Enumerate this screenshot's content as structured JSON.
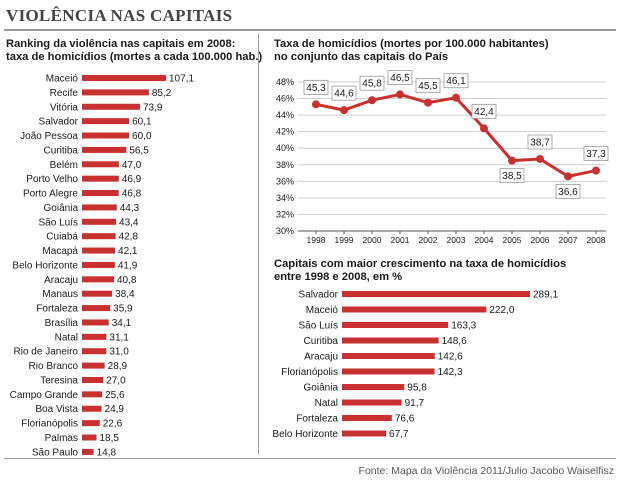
{
  "page": {
    "title": "VIOLÊNCIA NAS CAPITAIS",
    "source": "Fonte: Mapa da Violência 2011/Julio Jacobo Waiselfisz"
  },
  "colors": {
    "bar": "#c8312f",
    "line": "#c8312f",
    "marker": "#c8312f",
    "grid": "#cfcfcf",
    "label_box": "#ffffff"
  },
  "chart_data": [
    {
      "type": "bar",
      "orientation": "horizontal",
      "title_lines": [
        "Ranking da violência nas capitais em 2008:",
        "taxa de homicídios (mortes a cada 100.000 hab.)"
      ],
      "categories": [
        "Maceió",
        "Recife",
        "Vitória",
        "Salvador",
        "João Pessoa",
        "Curitiba",
        "Belém",
        "Porto Velho",
        "Porto Alegre",
        "Goiânia",
        "São Luís",
        "Cuiabá",
        "Macapá",
        "Belo Horizonte",
        "Aracaju",
        "Manaus",
        "Fortaleza",
        "Brasília",
        "Natal",
        "Rio de Janeiro",
        "Rio Branco",
        "Teresina",
        "Campo Grande",
        "Boa Vista",
        "Florianópolis",
        "Palmas",
        "São Paulo"
      ],
      "values": [
        107.1,
        85.2,
        73.9,
        60.1,
        60.0,
        56.5,
        47.0,
        46.9,
        46.8,
        44.3,
        43.4,
        42.8,
        42.1,
        41.9,
        40.8,
        38.4,
        35.9,
        34.1,
        31.1,
        31.0,
        28.9,
        27.0,
        25.6,
        24.9,
        22.6,
        18.5,
        14.8
      ],
      "value_labels": [
        "107,1",
        "85,2",
        "73,9",
        "60,1",
        "60,0",
        "56,5",
        "47,0",
        "46,9",
        "46,8",
        "44,3",
        "43,4",
        "42,8",
        "42,1",
        "41,9",
        "40,8",
        "38,4",
        "35,9",
        "34,1",
        "31,1",
        "31,0",
        "28,9",
        "27,0",
        "25,6",
        "24,9",
        "22,6",
        "18,5",
        "14,8"
      ]
    },
    {
      "type": "line",
      "title_lines": [
        "Taxa de homicídios (mortes por 100.000 habitantes)",
        "no conjunto das capitais do País"
      ],
      "x": [
        "1998",
        "1999",
        "2000",
        "2001",
        "2002",
        "2003",
        "2004",
        "2005",
        "2006",
        "2007",
        "2008"
      ],
      "values": [
        45.3,
        44.6,
        45.8,
        46.5,
        45.5,
        46.1,
        42.4,
        38.5,
        38.7,
        36.6,
        37.3
      ],
      "value_labels": [
        "45,3",
        "44,6",
        "45,8",
        "46,5",
        "45,5",
        "46,1",
        "42,4",
        "38,5",
        "38,7",
        "36,6",
        "37,3"
      ],
      "label_position": [
        "above",
        "above",
        "above",
        "above",
        "above",
        "above",
        "above",
        "below",
        "above",
        "below",
        "above"
      ],
      "ylim": [
        30,
        48
      ],
      "y_ticks": [
        30,
        32,
        34,
        36,
        38,
        40,
        42,
        44,
        46,
        48
      ],
      "y_tick_labels": [
        "30%",
        "32%",
        "34%",
        "36%",
        "38%",
        "40%",
        "42%",
        "44%",
        "46%",
        "48%"
      ],
      "grid": true
    },
    {
      "type": "bar",
      "orientation": "horizontal",
      "title_lines": [
        "Capitais com maior crescimento na taxa de homicídios",
        "entre 1998 e 2008, em %"
      ],
      "categories": [
        "Salvador",
        "Maceió",
        "São Luís",
        "Curitiba",
        "Aracaju",
        "Florianópolis",
        "Goiânia",
        "Natal",
        "Fortaleza",
        "Belo Horizonte"
      ],
      "values": [
        289.1,
        222.0,
        163.3,
        148.6,
        142.6,
        142.3,
        95.8,
        91.7,
        76.6,
        67.7
      ],
      "value_labels": [
        "289,1",
        "222,0",
        "163,3",
        "148,6",
        "142,6",
        "142,3",
        "95,8",
        "91,7",
        "76,6",
        "67,7"
      ]
    }
  ]
}
